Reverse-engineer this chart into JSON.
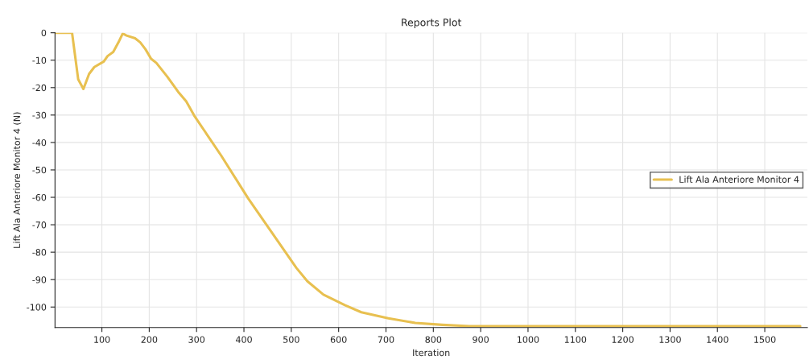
{
  "chart_data": {
    "type": "line",
    "title": "Reports Plot",
    "xlabel": "Iteration",
    "ylabel": "Lift Ala Anteriore Monitor 4 (N)",
    "xlim": [
      1,
      1590
    ],
    "xticks": [
      100,
      200,
      300,
      400,
      500,
      600,
      700,
      800,
      900,
      1000,
      1100,
      1200,
      1300,
      1400,
      1500
    ],
    "ylim": [
      -107.5,
      0
    ],
    "yticks": [
      0,
      -10,
      -20,
      -30,
      -40,
      -50,
      -60,
      -70,
      -80,
      -90,
      -100
    ],
    "grid": true,
    "legend": "right",
    "marker": "none",
    "line_style": "solid",
    "series": [
      {
        "name": "Lift Ala Anteriore Monitor 4",
        "color": "#e8c050",
        "x": [
          1,
          37,
          50,
          61,
          73,
          84,
          104,
          112,
          124,
          135,
          144,
          152,
          170,
          181,
          192,
          204,
          215,
          238,
          261,
          278,
          295,
          352,
          409,
          460,
          511,
          534,
          568,
          614,
          648,
          705,
          762,
          819,
          876,
          1000,
          1200,
          1400,
          1575
        ],
        "values": [
          0,
          0,
          -17,
          -20.5,
          -15,
          -12.5,
          -10.5,
          -8.5,
          -7,
          -3.5,
          -0.3,
          -1,
          -2,
          -3.5,
          -6,
          -9.5,
          -11,
          -16,
          -21.5,
          -25,
          -30.2,
          -44.8,
          -60.4,
          -73.1,
          -85.8,
          -90.6,
          -95.5,
          -99.4,
          -101.9,
          -104.1,
          -105.8,
          -106.5,
          -107,
          -107,
          -107,
          -107,
          -107
        ]
      }
    ]
  }
}
